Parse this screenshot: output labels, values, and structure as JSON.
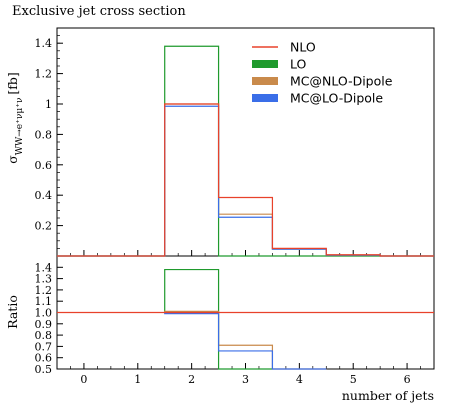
{
  "chart_data": {
    "type": "bar",
    "title": "Exclusive jet cross section",
    "xlabel": "number of jets",
    "ylabel_top": "σ",
    "ylabel_top_sub": "WW→e⁺νμ⁺ν",
    "ylabel_top_unit": "[fb]",
    "ylabel_bottom": "Ratio",
    "x_bin_edges": [
      1.5,
      2.5,
      3.5,
      4.5,
      5.5
    ],
    "xlim": [
      -0.5,
      6.5
    ],
    "x_ticks": [
      0,
      1,
      2,
      3,
      4,
      5,
      6
    ],
    "top_ylim": [
      0,
      1.5
    ],
    "top_y_ticks": [
      0.2,
      0.4,
      0.6,
      0.8,
      1,
      1.2,
      1.4
    ],
    "bottom_ylim": [
      0.5,
      1.5
    ],
    "bottom_y_ticks": [
      0.5,
      0.6,
      0.7,
      0.8,
      0.9,
      1.0,
      1.1,
      1.2,
      1.3,
      1.4
    ],
    "series": [
      {
        "name": "NLO",
        "color": "#e8422b",
        "values": [
          1.0,
          0.385,
          0.05,
          0.008
        ],
        "ratio": [
          1.0,
          1.0,
          1.0,
          1.0
        ]
      },
      {
        "name": "LO",
        "color": "#1f9a2d",
        "values": [
          1.38,
          0.0,
          0.0,
          0.0
        ],
        "ratio": [
          1.38,
          0.0,
          0.0,
          0.0
        ]
      },
      {
        "name": "MC@NLO-Dipole",
        "color": "#c98a4b",
        "values": [
          1.0,
          0.275,
          0.045,
          0.006
        ],
        "ratio": [
          1.01,
          0.71,
          0.0,
          0.0
        ]
      },
      {
        "name": "MC@LO-Dipole",
        "color": "#3a6ee8",
        "values": [
          0.985,
          0.255,
          0.045,
          0.006
        ],
        "ratio": [
          0.99,
          0.66,
          0.0,
          0.0
        ]
      }
    ]
  }
}
